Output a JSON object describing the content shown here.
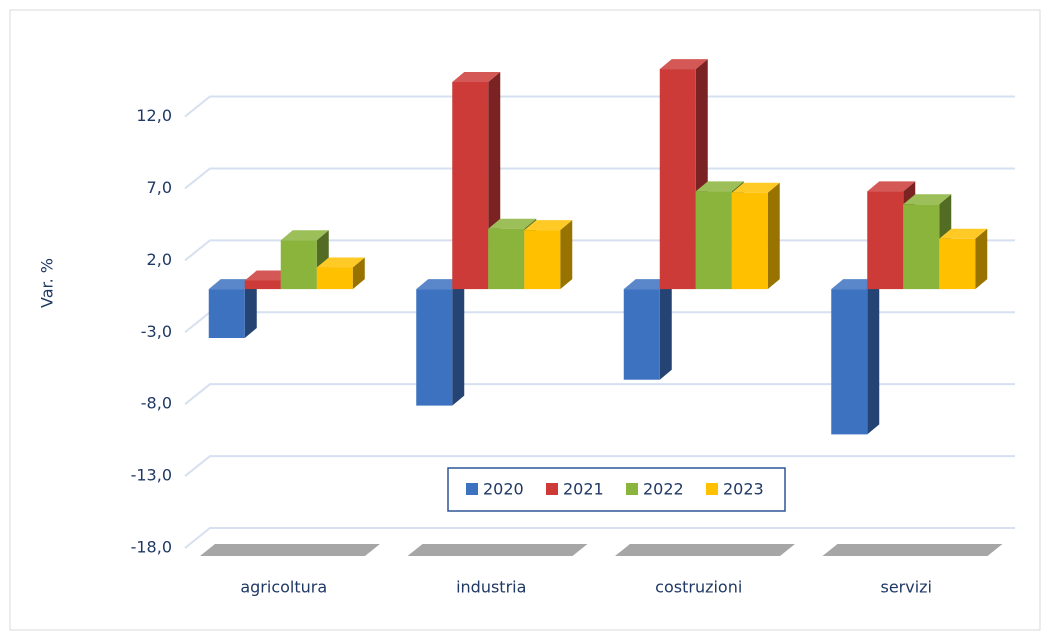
{
  "chart_data": {
    "type": "bar3d",
    "y_label": "Var. %",
    "categories": [
      "agricoltura",
      "industria",
      "costruzioni",
      "servizi"
    ],
    "series": [
      {
        "name": "2020",
        "color": "#3d72c0",
        "values": [
          -3.4,
          -8.1,
          -6.3,
          -10.1
        ]
      },
      {
        "name": "2021",
        "color": "#cc3b38",
        "values": [
          0.6,
          14.4,
          15.3,
          6.8
        ]
      },
      {
        "name": "2022",
        "color": "#8ab43c",
        "values": [
          3.4,
          4.2,
          6.8,
          5.9
        ]
      },
      {
        "name": "2023",
        "color": "#ffc000",
        "values": [
          1.5,
          4.1,
          6.7,
          3.5
        ]
      }
    ],
    "ylim": [
      -18,
      16
    ],
    "yticks": [
      {
        "value": -18,
        "label": "-18,0"
      },
      {
        "value": -13,
        "label": "-13,0"
      },
      {
        "value": -8,
        "label": "-8,0"
      },
      {
        "value": -3,
        "label": "-3,0"
      },
      {
        "value": 2,
        "label": "2,0"
      },
      {
        "value": 7,
        "label": "7,0"
      },
      {
        "value": 12,
        "label": "12,0"
      }
    ],
    "grid": true,
    "legend": "bottom"
  }
}
